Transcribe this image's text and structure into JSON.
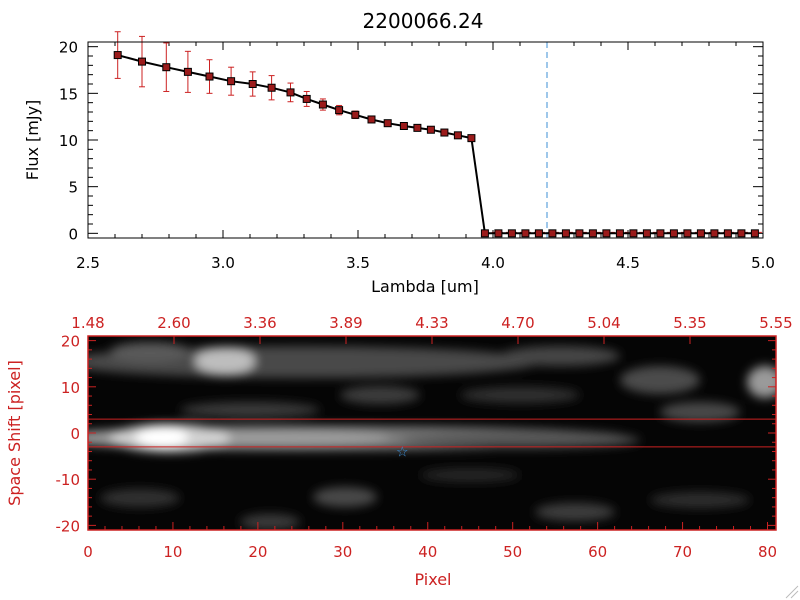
{
  "chart_data": [
    {
      "type": "line",
      "title": "2200066.24",
      "xlabel": "Lambda [um]",
      "ylabel": "Flux [mJy]",
      "xlim": [
        2.5,
        5.0
      ],
      "ylim": [
        -0.5,
        20.5
      ],
      "x_ticks": [
        "2.5",
        "3.0",
        "3.5",
        "4.0",
        "4.5",
        "5.0"
      ],
      "y_ticks": [
        "0",
        "5",
        "10",
        "15",
        "20"
      ],
      "marker_line_x": 4.2,
      "x": [
        2.61,
        2.7,
        2.79,
        2.87,
        2.95,
        3.03,
        3.11,
        3.18,
        3.25,
        3.31,
        3.37,
        3.43,
        3.49,
        3.55,
        3.61,
        3.67,
        3.72,
        3.77,
        3.82,
        3.87,
        3.92,
        3.97,
        4.02,
        4.07,
        4.12,
        4.17,
        4.22,
        4.27,
        4.32,
        4.37,
        4.42,
        4.47,
        4.52,
        4.57,
        4.62,
        4.67,
        4.72,
        4.77,
        4.82,
        4.87,
        4.92,
        4.97
      ],
      "y": [
        19.1,
        18.4,
        17.8,
        17.3,
        16.8,
        16.3,
        16.0,
        15.6,
        15.1,
        14.4,
        13.8,
        13.2,
        12.7,
        12.2,
        11.8,
        11.5,
        11.3,
        11.1,
        10.8,
        10.5,
        10.2,
        0.0,
        0.0,
        0.0,
        0.0,
        0.0,
        0.0,
        0.0,
        0.0,
        0.0,
        0.0,
        0.0,
        0.0,
        0.0,
        0.0,
        0.0,
        0.0,
        0.0,
        0.0,
        0.0,
        0.0,
        0.0
      ],
      "yerr": [
        2.5,
        2.7,
        2.6,
        2.2,
        1.8,
        1.5,
        1.3,
        1.3,
        1.0,
        0.8,
        0.6,
        0.5,
        0.4,
        0.3,
        0.3,
        0.2,
        0.2,
        0.2,
        0.2,
        0.2,
        0.2,
        0.1,
        0.1,
        0.1,
        0.1,
        0.1,
        0.1,
        0.1,
        0.1,
        0.1,
        0.1,
        0.1,
        0.1,
        0.1,
        0.1,
        0.1,
        0.1,
        0.1,
        0.1,
        0.1,
        0.1,
        0.1
      ],
      "colors": {
        "line": "#000000",
        "marker": "#9b1b1b",
        "error": "#cc2222",
        "marker_line": "#3d8fd6",
        "zero_line": "#cc2222"
      }
    },
    {
      "type": "heatmap",
      "xlabel": "Pixel",
      "ylabel": "Space Shift [pixel]",
      "xlim": [
        0,
        81
      ],
      "ylim": [
        -21,
        21
      ],
      "x_ticks": [
        "0",
        "10",
        "20",
        "30",
        "40",
        "50",
        "60",
        "70",
        "80"
      ],
      "y_ticks": [
        "-20",
        "-10",
        "0",
        "10",
        "20"
      ],
      "top_ticks": [
        "1.48",
        "2.60",
        "3.36",
        "3.89",
        "4.33",
        "4.70",
        "5.04",
        "5.35",
        "5.55"
      ],
      "aperture_lines": [
        3,
        -3
      ],
      "star_position": [
        37,
        -4
      ],
      "colors": {
        "axis": "#cc2222",
        "aperture": "#cc2222",
        "star": "#3d8fd6"
      }
    }
  ]
}
